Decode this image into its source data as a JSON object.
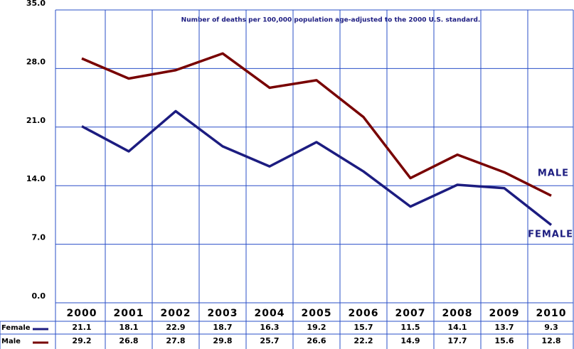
{
  "chart_data": {
    "type": "line",
    "annotation": "Number of deaths per 100,000 population age-adjusted to the 2000 U.S. standard.",
    "series_labels": [
      "MALE",
      "FEMALE"
    ],
    "categories": [
      "2000",
      "2001",
      "2002",
      "2003",
      "2004",
      "2005",
      "2006",
      "2007",
      "2008",
      "2009",
      "2010"
    ],
    "series": [
      {
        "name": "Female",
        "color": "#1c1c80",
        "values": [
          21.1,
          18.1,
          22.9,
          18.7,
          16.3,
          19.2,
          15.7,
          11.5,
          14.1,
          13.7,
          9.3
        ]
      },
      {
        "name": "Male",
        "color": "#780000",
        "values": [
          29.2,
          26.8,
          27.8,
          29.8,
          25.7,
          26.6,
          22.2,
          14.9,
          17.7,
          15.6,
          12.8
        ]
      }
    ],
    "ylim": [
      0,
      35
    ],
    "yticks": [
      {
        "value": 0,
        "label": "0.0"
      },
      {
        "value": 7,
        "label": "7.0"
      },
      {
        "value": 14,
        "label": "14.0"
      },
      {
        "value": 21,
        "label": "21.0"
      },
      {
        "value": 28,
        "label": "28.0"
      },
      {
        "value": 35,
        "label": "35.0"
      }
    ],
    "grid": true
  }
}
